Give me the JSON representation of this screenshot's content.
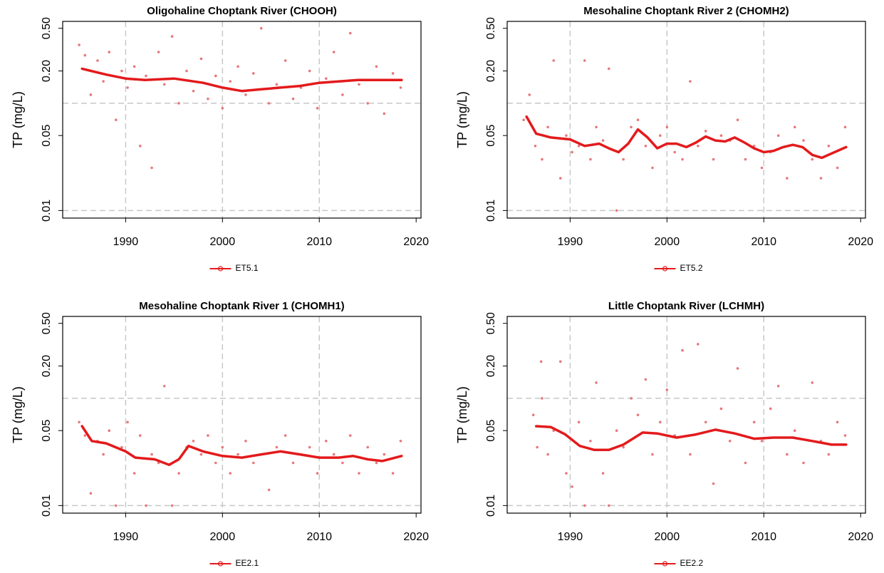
{
  "chart_data": [
    {
      "type": "line",
      "title": "Oligohaline Choptank River (CHOOH)",
      "y_label": "TP (mg/L)",
      "log_y": true,
      "xlim": [
        1983.5,
        2020.5
      ],
      "ylim": [
        0.0085,
        0.58
      ],
      "xticks": [
        1990,
        2000,
        2010,
        2020
      ],
      "yticks": [
        0.01,
        0.05,
        {
          "value": 0.2,
          "label": "0.20"
        },
        {
          "value": 0.5,
          "label": "0.50"
        }
      ],
      "grid_x": [
        1990,
        2000,
        2010
      ],
      "grid_y": [
        0.01,
        0.1
      ],
      "legend": "bottom",
      "points": {
        "color": "#e8787a",
        "x": [
          1985.2,
          1985.8,
          1986.4,
          1987.1,
          1987.7,
          1988.3,
          1989.0,
          1989.6,
          1990.2,
          1990.9,
          1991.5,
          1992.1,
          1992.7,
          1993.4,
          1994.0,
          1994.8,
          1995.5,
          1996.3,
          1997.0,
          1997.8,
          1998.5,
          1999.3,
          2000.0,
          2000.8,
          2001.6,
          2002.4,
          2003.2,
          2004.0,
          2004.8,
          2005.6,
          2006.5,
          2007.3,
          2008.1,
          2009.0,
          2009.8,
          2010.7,
          2011.5,
          2012.4,
          2013.2,
          2014.1,
          2015.0,
          2015.9,
          2016.7,
          2017.6,
          2018.4
        ],
        "values": [
          0.35,
          0.28,
          0.12,
          0.25,
          0.16,
          0.3,
          0.07,
          0.2,
          0.14,
          0.22,
          0.04,
          0.18,
          0.025,
          0.3,
          0.15,
          0.42,
          0.1,
          0.2,
          0.13,
          0.26,
          0.11,
          0.18,
          0.09,
          0.16,
          0.22,
          0.12,
          0.19,
          0.5,
          0.1,
          0.15,
          0.25,
          0.11,
          0.14,
          0.2,
          0.09,
          0.17,
          0.3,
          0.12,
          0.45,
          0.15,
          0.1,
          0.22,
          0.08,
          0.19,
          0.14
        ]
      },
      "series": [
        {
          "name": "ET5.1",
          "color": "#e31a1c",
          "x": [
            1985.5,
            1988,
            1990,
            1992,
            1995,
            1998,
            2000,
            2002,
            2004,
            2006,
            2008,
            2010,
            2012,
            2014,
            2016,
            2018.5
          ],
          "values": [
            0.21,
            0.185,
            0.17,
            0.165,
            0.17,
            0.155,
            0.14,
            0.13,
            0.135,
            0.14,
            0.145,
            0.155,
            0.16,
            0.165,
            0.165,
            0.165
          ]
        }
      ]
    },
    {
      "type": "line",
      "title": "Mesohaline Choptank River 2 (CHOMH2)",
      "y_label": "TP (mg/L)",
      "log_y": true,
      "xlim": [
        1983.5,
        2020.5
      ],
      "ylim": [
        0.0085,
        0.58
      ],
      "xticks": [
        1990,
        2000,
        2010,
        2020
      ],
      "yticks": [
        0.01,
        0.05,
        {
          "value": 0.2,
          "label": "0.20"
        },
        {
          "value": 0.5,
          "label": "0.50"
        }
      ],
      "grid_x": [
        1990,
        2000,
        2010
      ],
      "grid_y": [
        0.01,
        0.1
      ],
      "legend": "bottom",
      "points": {
        "color": "#e8787a",
        "x": [
          1985.2,
          1985.8,
          1986.4,
          1987.1,
          1987.7,
          1988.3,
          1989.0,
          1989.6,
          1990.2,
          1990.9,
          1991.5,
          1992.1,
          1992.7,
          1993.4,
          1994.0,
          1994.8,
          1995.5,
          1996.3,
          1997.0,
          1997.8,
          1998.5,
          1999.3,
          2000.0,
          2000.8,
          2001.6,
          2002.4,
          2003.2,
          2004.0,
          2004.8,
          2005.6,
          2006.5,
          2007.3,
          2008.1,
          2009.0,
          2009.8,
          2010.7,
          2011.5,
          2012.4,
          2013.2,
          2014.1,
          2015.0,
          2015.9,
          2016.7,
          2017.6,
          2018.4
        ],
        "values": [
          0.07,
          0.12,
          0.04,
          0.03,
          0.06,
          0.25,
          0.02,
          0.05,
          0.035,
          0.04,
          0.25,
          0.03,
          0.06,
          0.045,
          0.21,
          0.01,
          0.03,
          0.06,
          0.07,
          0.04,
          0.025,
          0.05,
          0.06,
          0.035,
          0.03,
          0.16,
          0.04,
          0.055,
          0.03,
          0.05,
          0.045,
          0.07,
          0.03,
          0.04,
          0.025,
          0.035,
          0.05,
          0.02,
          0.06,
          0.045,
          0.03,
          0.02,
          0.04,
          0.025,
          0.06
        ]
      },
      "series": [
        {
          "name": "ET5.2",
          "color": "#e31a1c",
          "x": [
            1985.5,
            1986.5,
            1988,
            1990,
            1991.5,
            1993,
            1994,
            1995,
            1996,
            1997,
            1998,
            1999,
            2000,
            2001,
            2002,
            2003,
            2004,
            2005,
            2006,
            2007,
            2008,
            2009,
            2010,
            2011,
            2012,
            2013,
            2014,
            2015,
            2016,
            2017,
            2018.5
          ],
          "values": [
            0.075,
            0.052,
            0.048,
            0.046,
            0.04,
            0.042,
            0.038,
            0.035,
            0.042,
            0.057,
            0.048,
            0.038,
            0.042,
            0.042,
            0.039,
            0.043,
            0.049,
            0.045,
            0.044,
            0.048,
            0.043,
            0.038,
            0.035,
            0.036,
            0.039,
            0.041,
            0.039,
            0.033,
            0.031,
            0.034,
            0.039
          ]
        }
      ]
    },
    {
      "type": "line",
      "title": "Mesohaline Choptank River 1 (CHOMH1)",
      "y_label": "TP (mg/L)",
      "log_y": true,
      "xlim": [
        1983.5,
        2020.5
      ],
      "ylim": [
        0.0085,
        0.58
      ],
      "xticks": [
        1990,
        2000,
        2010,
        2020
      ],
      "yticks": [
        0.01,
        0.05,
        {
          "value": 0.2,
          "label": "0.20"
        },
        {
          "value": 0.5,
          "label": "0.50"
        }
      ],
      "grid_x": [
        1990,
        2000,
        2010
      ],
      "grid_y": [
        0.01,
        0.1
      ],
      "legend": "bottom",
      "points": {
        "color": "#e8787a",
        "x": [
          1985.2,
          1985.8,
          1986.4,
          1987.1,
          1987.7,
          1988.3,
          1989.0,
          1989.6,
          1990.2,
          1990.9,
          1991.5,
          1992.1,
          1992.7,
          1993.4,
          1994.0,
          1994.8,
          1995.5,
          1996.3,
          1997.0,
          1997.8,
          1998.5,
          1999.3,
          2000.0,
          2000.8,
          2001.6,
          2002.4,
          2003.2,
          2004.0,
          2004.8,
          2005.6,
          2006.5,
          2007.3,
          2008.1,
          2009.0,
          2009.8,
          2010.7,
          2011.5,
          2012.4,
          2013.2,
          2014.1,
          2015.0,
          2015.9,
          2016.7,
          2017.6,
          2018.4
        ],
        "values": [
          0.06,
          0.045,
          0.013,
          0.04,
          0.03,
          0.05,
          0.01,
          0.035,
          0.06,
          0.02,
          0.045,
          0.01,
          0.03,
          0.025,
          0.13,
          0.01,
          0.02,
          0.035,
          0.04,
          0.03,
          0.045,
          0.025,
          0.035,
          0.02,
          0.03,
          0.04,
          0.025,
          0.03,
          0.014,
          0.035,
          0.045,
          0.025,
          0.03,
          0.035,
          0.02,
          0.04,
          0.03,
          0.025,
          0.045,
          0.02,
          0.035,
          0.025,
          0.03,
          0.02,
          0.04
        ]
      },
      "series": [
        {
          "name": "EE2.1",
          "color": "#e31a1c",
          "x": [
            1985.5,
            1986.5,
            1988,
            1990,
            1991,
            1993,
            1994.5,
            1995.5,
            1996.5,
            1998,
            2000,
            2002,
            2004,
            2006,
            2008,
            2010,
            2012,
            2013.5,
            2015,
            2016.5,
            2018.5
          ],
          "values": [
            0.055,
            0.04,
            0.038,
            0.032,
            0.028,
            0.027,
            0.024,
            0.027,
            0.036,
            0.032,
            0.029,
            0.028,
            0.03,
            0.032,
            0.03,
            0.028,
            0.028,
            0.029,
            0.027,
            0.026,
            0.029
          ]
        }
      ]
    },
    {
      "type": "line",
      "title": "Little Choptank River (LCHMH)",
      "y_label": "TP (mg/L)",
      "log_y": true,
      "xlim": [
        1983.5,
        2020.5
      ],
      "ylim": [
        0.0085,
        0.58
      ],
      "xticks": [
        1990,
        2000,
        2010,
        2020
      ],
      "yticks": [
        0.01,
        0.05,
        {
          "value": 0.2,
          "label": "0.20"
        },
        {
          "value": 0.5,
          "label": "0.50"
        }
      ],
      "grid_x": [
        1990,
        2000,
        2010
      ],
      "grid_y": [
        0.01,
        0.1
      ],
      "legend": "bottom",
      "points": {
        "color": "#e8787a",
        "x": [
          1986.2,
          1986.6,
          1987.0,
          1987.1,
          1987.7,
          1988.3,
          1989.0,
          1989.6,
          1990.2,
          1990.9,
          1991.5,
          1992.1,
          1992.7,
          1993.4,
          1994.0,
          1994.8,
          1995.5,
          1996.3,
          1997.0,
          1997.8,
          1998.5,
          1999.3,
          2000.0,
          2000.8,
          2001.6,
          2002.4,
          2003.2,
          2004.0,
          2004.8,
          2005.6,
          2006.5,
          2007.3,
          2008.1,
          2009.0,
          2009.8,
          2010.7,
          2011.5,
          2012.4,
          2013.2,
          2014.1,
          2015.0,
          2015.9,
          2016.7,
          2017.6,
          2018.4
        ],
        "values": [
          0.07,
          0.035,
          0.22,
          0.1,
          0.03,
          0.05,
          0.22,
          0.02,
          0.015,
          0.06,
          0.01,
          0.04,
          0.14,
          0.02,
          0.01,
          0.05,
          0.035,
          0.1,
          0.07,
          0.15,
          0.03,
          0.06,
          0.12,
          0.045,
          0.28,
          0.03,
          0.32,
          0.06,
          0.016,
          0.08,
          0.04,
          0.19,
          0.025,
          0.06,
          0.04,
          0.08,
          0.13,
          0.03,
          0.05,
          0.025,
          0.14,
          0.04,
          0.03,
          0.06,
          0.045
        ]
      },
      "series": [
        {
          "name": "EE2.2",
          "color": "#e31a1c",
          "x": [
            1986.5,
            1988,
            1989.5,
            1991,
            1992.5,
            1994,
            1995.5,
            1997.5,
            1999,
            2001,
            2003,
            2005,
            2007,
            2009,
            2011,
            2013,
            2015,
            2017,
            2018.5
          ],
          "values": [
            0.055,
            0.054,
            0.046,
            0.036,
            0.033,
            0.033,
            0.037,
            0.048,
            0.047,
            0.043,
            0.046,
            0.051,
            0.047,
            0.042,
            0.043,
            0.043,
            0.04,
            0.037,
            0.037
          ]
        }
      ]
    }
  ]
}
